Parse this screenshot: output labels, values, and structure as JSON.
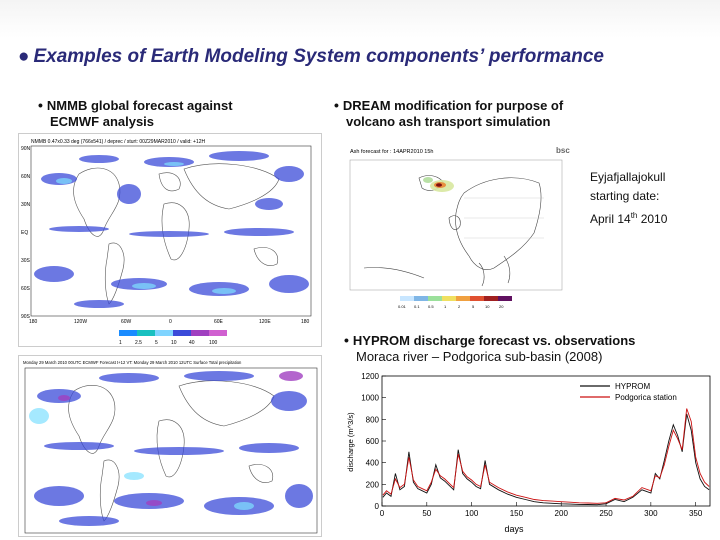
{
  "slide": {
    "title_bullet": "●",
    "title": "Examples of Earth Modeling System components’ performance",
    "sections": {
      "nmmb": {
        "bullet": "•",
        "line1": "NMMB global forecast against",
        "line2": "ECMWF analysis",
        "top_map_title": "NMMB 0.47x0.33 deg (766x541) / deprec / sturt: 00Z29MAR2010 / valid: +12H",
        "bottom_map_title": "Monday 29 March 2010 00UTC ECMWF Forecast t+12 VT: Monday 29 March 2010 12UTC Surface Total precipitation",
        "colorbar_ticks": [
          "1",
          "2.5",
          "5",
          "10",
          "40",
          "100"
        ],
        "lon_ticks": [
          "180",
          "120W",
          "60W",
          "0",
          "60E",
          "120E",
          "180"
        ],
        "lat_ticks": [
          "90N",
          "60N",
          "30N",
          "EQ",
          "30S",
          "60S",
          "90S"
        ]
      },
      "dream": {
        "bullet": "•",
        "line1": "DREAM modification for purpose of",
        "line2": "volcano ash transport simulation",
        "map_title": "Ash forecast for : 14APR2010 15h",
        "logo": "bsc",
        "colorbar_ticks": [
          "0.01",
          "0.1",
          "0.5",
          "1",
          "2",
          "5",
          "10",
          "20"
        ],
        "volcano": "Eyjafjallajokull",
        "start_label": "starting date:",
        "start_date_pre": "April 14",
        "start_date_sup": "th",
        "start_date_post": " 2010"
      },
      "hyprom": {
        "bullet": "•",
        "line1": "HYPROM discharge forecast vs. observations",
        "line2": "Moraca river – Podgorica sub-basin (2008)"
      }
    }
  },
  "chart_data": {
    "type": "line",
    "title": "",
    "xlabel": "days",
    "ylabel": "discharge (m^3/s)",
    "xlim": [
      0,
      366
    ],
    "ylim": [
      0,
      1200
    ],
    "xticks": [
      0,
      50,
      100,
      150,
      200,
      250,
      300,
      350
    ],
    "yticks": [
      0,
      200,
      400,
      600,
      800,
      1000,
      1200
    ],
    "legend_position": "top-right",
    "series": [
      {
        "name": "HYPROM",
        "color": "#111111",
        "x": [
          1,
          5,
          10,
          15,
          20,
          25,
          30,
          35,
          40,
          45,
          50,
          55,
          60,
          65,
          70,
          75,
          80,
          85,
          90,
          95,
          100,
          105,
          110,
          115,
          120,
          130,
          140,
          150,
          160,
          170,
          180,
          190,
          200,
          210,
          220,
          230,
          240,
          250,
          260,
          270,
          280,
          290,
          300,
          305,
          310,
          315,
          320,
          325,
          330,
          335,
          340,
          345,
          350,
          355,
          360,
          365
        ],
        "y": [
          80,
          120,
          90,
          300,
          150,
          180,
          500,
          220,
          160,
          140,
          120,
          200,
          380,
          260,
          230,
          190,
          150,
          520,
          300,
          250,
          220,
          180,
          160,
          420,
          200,
          150,
          110,
          80,
          60,
          40,
          30,
          25,
          20,
          18,
          15,
          14,
          12,
          20,
          60,
          40,
          80,
          150,
          120,
          300,
          250,
          420,
          600,
          750,
          650,
          500,
          850,
          700,
          400,
          250,
          180,
          150
        ]
      },
      {
        "name": "Podgorica station",
        "color": "#cc1111",
        "x": [
          1,
          5,
          10,
          15,
          20,
          25,
          30,
          35,
          40,
          45,
          50,
          55,
          60,
          65,
          70,
          75,
          80,
          85,
          90,
          95,
          100,
          105,
          110,
          115,
          120,
          130,
          140,
          150,
          160,
          170,
          180,
          190,
          200,
          210,
          220,
          230,
          240,
          250,
          260,
          270,
          280,
          290,
          300,
          305,
          310,
          315,
          320,
          325,
          330,
          335,
          340,
          345,
          350,
          355,
          360,
          365
        ],
        "y": [
          100,
          140,
          110,
          250,
          170,
          200,
          450,
          240,
          180,
          160,
          140,
          220,
          340,
          280,
          250,
          210,
          170,
          480,
          320,
          270,
          240,
          200,
          180,
          380,
          220,
          170,
          130,
          100,
          80,
          60,
          50,
          45,
          40,
          35,
          30,
          28,
          25,
          30,
          70,
          55,
          90,
          170,
          140,
          280,
          260,
          380,
          550,
          700,
          620,
          520,
          900,
          780,
          450,
          300,
          220,
          180
        ]
      }
    ]
  }
}
